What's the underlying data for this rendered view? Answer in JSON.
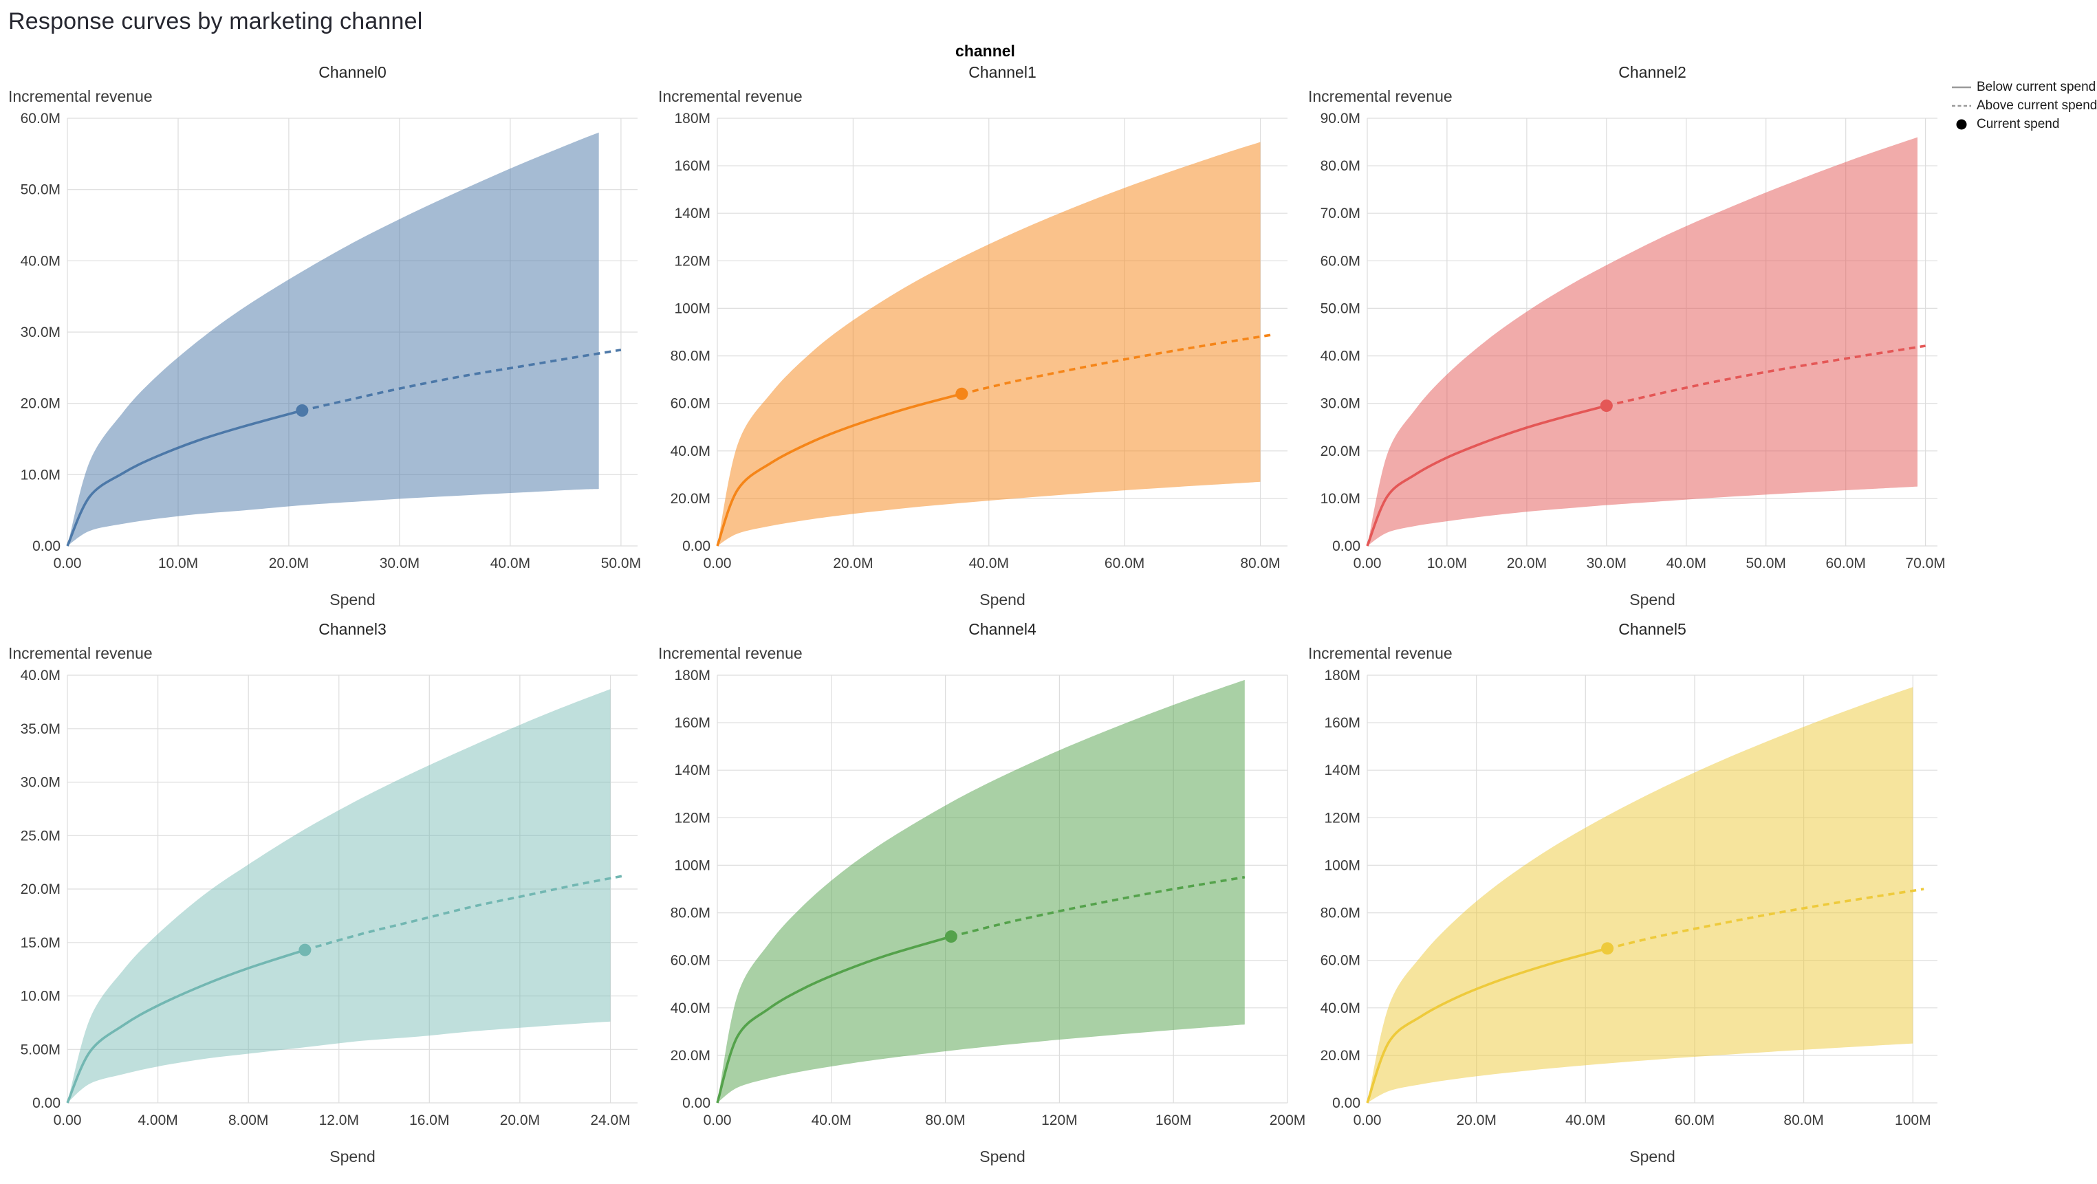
{
  "page": {
    "title": "Response curves by marketing channel"
  },
  "facet": {
    "header": "channel"
  },
  "legend": {
    "items": [
      {
        "label": "Below current spend",
        "symbol": "solid-line",
        "color": "#9a9a9a"
      },
      {
        "label": "Above current spend",
        "symbol": "dashed-line",
        "color": "#9a9a9a"
      },
      {
        "label": "Current spend",
        "symbol": "point",
        "color": "#000000"
      }
    ]
  },
  "chart_data": [
    {
      "type": "line",
      "title": "Channel0",
      "xlabel": "Spend",
      "ylabel": "Incremental revenue",
      "unit": "M",
      "color": "#4c78a8",
      "band_opacity": 0.5,
      "x_domain": [
        0,
        51.5
      ],
      "y_domain": [
        0,
        60
      ],
      "x_ticks": [
        0,
        10,
        20,
        30,
        40,
        50
      ],
      "x_tick_labels": [
        "0.00",
        "10.0M",
        "20.0M",
        "30.0M",
        "40.0M",
        "50.0M"
      ],
      "y_ticks": [
        0,
        10,
        20,
        30,
        40,
        50,
        60
      ],
      "y_tick_labels": [
        "0.00",
        "10.0M",
        "20.0M",
        "30.0M",
        "40.0M",
        "50.0M",
        "60.0M"
      ],
      "current_spend": {
        "x": 21.2,
        "y": 19.0
      },
      "line": {
        "x": [
          0,
          2,
          5,
          8,
          12,
          16,
          21.2,
          26,
          31,
          36,
          41,
          46,
          50
        ],
        "y": [
          0,
          6.9,
          10.2,
          12.5,
          14.9,
          16.8,
          19.0,
          20.7,
          22.4,
          23.9,
          25.2,
          26.5,
          27.5
        ]
      },
      "band": {
        "x": [
          0,
          2,
          5,
          8,
          12,
          16,
          21.2,
          26,
          31,
          36,
          41,
          46,
          48
        ],
        "upper": [
          0,
          11.8,
          18.7,
          23.7,
          29.0,
          33.5,
          38.5,
          42.7,
          46.6,
          50.2,
          53.6,
          56.8,
          58.0
        ],
        "lower": [
          0,
          2.1,
          3.1,
          3.8,
          4.5,
          5.0,
          5.7,
          6.2,
          6.7,
          7.1,
          7.5,
          7.9,
          8.0
        ]
      }
    },
    {
      "type": "line",
      "title": "Channel1",
      "xlabel": "Spend",
      "ylabel": "Incremental revenue",
      "unit": "M",
      "color": "#f58518",
      "band_opacity": 0.5,
      "x_domain": [
        0,
        84
      ],
      "y_domain": [
        0,
        180
      ],
      "x_ticks": [
        0,
        20,
        40,
        60,
        80
      ],
      "x_tick_labels": [
        "0.00",
        "20.0M",
        "40.0M",
        "60.0M",
        "80.0M"
      ],
      "y_ticks": [
        0,
        20,
        40,
        60,
        80,
        100,
        120,
        140,
        160,
        180
      ],
      "y_tick_labels": [
        "0.00",
        "20.0M",
        "40.0M",
        "60.0M",
        "80.0M",
        "100M",
        "120M",
        "140M",
        "160M",
        "180M"
      ],
      "current_spend": {
        "x": 36,
        "y": 64
      },
      "line": {
        "x": [
          0,
          3,
          8,
          14,
          20,
          28,
          36,
          44,
          52,
          60,
          68,
          75,
          82
        ],
        "y": [
          0,
          23.7,
          35.1,
          43.9,
          50.6,
          57.9,
          64.0,
          69.4,
          74.1,
          78.5,
          82.5,
          85.8,
          89.0
        ]
      },
      "band": {
        "x": [
          0,
          3,
          8,
          14,
          20,
          28,
          36,
          44,
          52,
          60,
          68,
          75,
          80
        ],
        "upper": [
          0,
          42.8,
          64.6,
          81.8,
          95.0,
          109.4,
          121.5,
          132.2,
          141.9,
          150.7,
          158.8,
          165.5,
          170.0
        ],
        "lower": [
          0,
          5.2,
          8.5,
          11.3,
          13.5,
          16.0,
          18.1,
          20.0,
          21.8,
          23.4,
          24.9,
          26.1,
          27.0
        ]
      }
    },
    {
      "type": "line",
      "title": "Channel2",
      "xlabel": "Spend",
      "ylabel": "Incremental revenue",
      "unit": "M",
      "color": "#e45756",
      "band_opacity": 0.5,
      "x_domain": [
        0,
        71.5
      ],
      "y_domain": [
        0,
        90
      ],
      "x_ticks": [
        0,
        10,
        20,
        30,
        40,
        50,
        60,
        70
      ],
      "x_tick_labels": [
        "0.00",
        "10.0M",
        "20.0M",
        "30.0M",
        "40.0M",
        "50.0M",
        "60.0M",
        "70.0M"
      ],
      "y_ticks": [
        0,
        10,
        20,
        30,
        40,
        50,
        60,
        70,
        80,
        90
      ],
      "y_tick_labels": [
        "0.00",
        "10.0M",
        "20.0M",
        "30.0M",
        "40.0M",
        "50.0M",
        "60.0M",
        "70.0M",
        "80.0M",
        "90.0M"
      ],
      "current_spend": {
        "x": 30,
        "y": 29.5
      },
      "line": {
        "x": [
          0,
          2.5,
          6,
          10,
          15,
          20,
          25,
          30,
          37,
          44,
          52,
          61,
          70
        ],
        "y": [
          0,
          10.4,
          15.0,
          18.6,
          22.0,
          24.9,
          27.3,
          29.5,
          32.2,
          34.7,
          37.2,
          39.7,
          42.1
        ]
      },
      "band": {
        "x": [
          0,
          2.5,
          6,
          10,
          15,
          20,
          25,
          30,
          37,
          44,
          52,
          61,
          69
        ],
        "upper": [
          0,
          19.3,
          28.7,
          36.1,
          43.3,
          49.3,
          54.5,
          59.1,
          65.0,
          70.2,
          75.7,
          81.4,
          86.0
        ],
        "lower": [
          0,
          2.8,
          4.2,
          5.2,
          6.3,
          7.2,
          7.9,
          8.6,
          9.4,
          10.2,
          11.0,
          11.8,
          12.5
        ]
      }
    },
    {
      "type": "line",
      "title": "Channel3",
      "xlabel": "Spend",
      "ylabel": "Incremental revenue",
      "unit": "M",
      "color": "#72b7b2",
      "band_opacity": 0.45,
      "x_domain": [
        0,
        25.2
      ],
      "y_domain": [
        0,
        40
      ],
      "x_ticks": [
        0,
        4,
        8,
        12,
        16,
        20,
        24
      ],
      "x_tick_labels": [
        "0.00",
        "4.00M",
        "8.00M",
        "12.0M",
        "16.0M",
        "20.0M",
        "24.0M"
      ],
      "y_ticks": [
        0,
        5,
        10,
        15,
        20,
        25,
        30,
        35,
        40
      ],
      "y_tick_labels": [
        "0.00",
        "5.00M",
        "10.0M",
        "15.0M",
        "20.0M",
        "25.0M",
        "30.0M",
        "35.0M",
        "40.0M"
      ],
      "current_spend": {
        "x": 10.5,
        "y": 14.3
      },
      "line": {
        "x": [
          0,
          1,
          2.5,
          4,
          6,
          8,
          10.5,
          13,
          15.5,
          18,
          20.5,
          22.5,
          24.5
        ],
        "y": [
          0,
          4.8,
          7.3,
          9.1,
          11.0,
          12.6,
          14.3,
          15.8,
          17.1,
          18.4,
          19.5,
          20.4,
          21.2
        ]
      },
      "band": {
        "x": [
          0,
          1,
          2.5,
          4,
          6,
          8,
          10.5,
          13,
          15.5,
          18,
          20.5,
          22.5,
          24
        ],
        "upper": [
          0,
          7.9,
          12.5,
          15.8,
          19.4,
          22.3,
          25.6,
          28.5,
          31.1,
          33.5,
          35.8,
          37.5,
          38.7
        ],
        "lower": [
          0,
          1.8,
          2.7,
          3.4,
          4.1,
          4.6,
          5.2,
          5.8,
          6.2,
          6.7,
          7.1,
          7.4,
          7.6
        ]
      }
    },
    {
      "type": "line",
      "title": "Channel4",
      "xlabel": "Spend",
      "ylabel": "Incremental revenue",
      "unit": "M",
      "color": "#54a24b",
      "band_opacity": 0.5,
      "x_domain": [
        0,
        200
      ],
      "y_domain": [
        0,
        180
      ],
      "x_ticks": [
        0,
        40,
        80,
        120,
        160,
        200
      ],
      "x_tick_labels": [
        "0.00",
        "40.0M",
        "80.0M",
        "120M",
        "160M",
        "200M"
      ],
      "y_ticks": [
        0,
        20,
        40,
        60,
        80,
        100,
        120,
        140,
        160,
        180
      ],
      "y_tick_labels": [
        "0.00",
        "20.0M",
        "40.0M",
        "60.0M",
        "80.0M",
        "100M",
        "120M",
        "140M",
        "160M",
        "180M"
      ],
      "current_spend": {
        "x": 82,
        "y": 70
      },
      "line": {
        "x": [
          0,
          7,
          18,
          30,
          44,
          60,
          82,
          100,
          118,
          136,
          154,
          170,
          185
        ],
        "y": [
          0,
          27.8,
          39.6,
          48.0,
          55.4,
          62.3,
          70.0,
          75.4,
          80.2,
          84.6,
          88.7,
          92.0,
          95.0
        ]
      },
      "band": {
        "x": [
          0,
          7,
          18,
          30,
          44,
          60,
          82,
          100,
          118,
          136,
          154,
          170,
          185
        ],
        "upper": [
          0,
          45.0,
          66.9,
          82.9,
          97.4,
          110.9,
          126.5,
          137.5,
          147.4,
          156.4,
          164.8,
          171.8,
          178.0
        ],
        "lower": [
          0,
          6.4,
          10.3,
          13.3,
          16.1,
          18.8,
          22.0,
          24.3,
          26.4,
          28.3,
          30.1,
          31.6,
          33.0
        ]
      }
    },
    {
      "type": "line",
      "title": "Channel5",
      "xlabel": "Spend",
      "ylabel": "Incremental revenue",
      "unit": "M",
      "color": "#eeca3b",
      "band_opacity": 0.5,
      "x_domain": [
        0,
        104.5
      ],
      "y_domain": [
        0,
        180
      ],
      "x_ticks": [
        0,
        20,
        40,
        60,
        80,
        100
      ],
      "x_tick_labels": [
        "0.00",
        "20.0M",
        "40.0M",
        "60.0M",
        "80.0M",
        "100M"
      ],
      "y_ticks": [
        0,
        20,
        40,
        60,
        80,
        100,
        120,
        140,
        160,
        180
      ],
      "y_tick_labels": [
        "0.00",
        "20.0M",
        "40.0M",
        "60.0M",
        "80.0M",
        "100M",
        "120M",
        "140M",
        "160M",
        "180M"
      ],
      "current_spend": {
        "x": 44,
        "y": 65
      },
      "line": {
        "x": [
          0,
          4,
          10,
          17,
          25,
          34,
          44,
          54,
          64,
          74,
          84,
          93,
          102
        ],
        "y": [
          0,
          25.7,
          36.6,
          45.0,
          52.2,
          58.8,
          65.0,
          70.4,
          75.1,
          79.5,
          83.5,
          86.8,
          90.0
        ]
      },
      "band": {
        "x": [
          0,
          4,
          10,
          17,
          25,
          34,
          44,
          54,
          64,
          74,
          84,
          93,
          100
        ],
        "upper": [
          0,
          41.1,
          62.1,
          78.8,
          93.8,
          107.7,
          120.9,
          132.6,
          143.2,
          152.8,
          161.8,
          169.4,
          175.0
        ],
        "lower": [
          0,
          5.0,
          7.9,
          10.3,
          12.5,
          14.6,
          16.6,
          18.4,
          20.0,
          21.5,
          22.9,
          24.1,
          25.0
        ]
      }
    }
  ]
}
